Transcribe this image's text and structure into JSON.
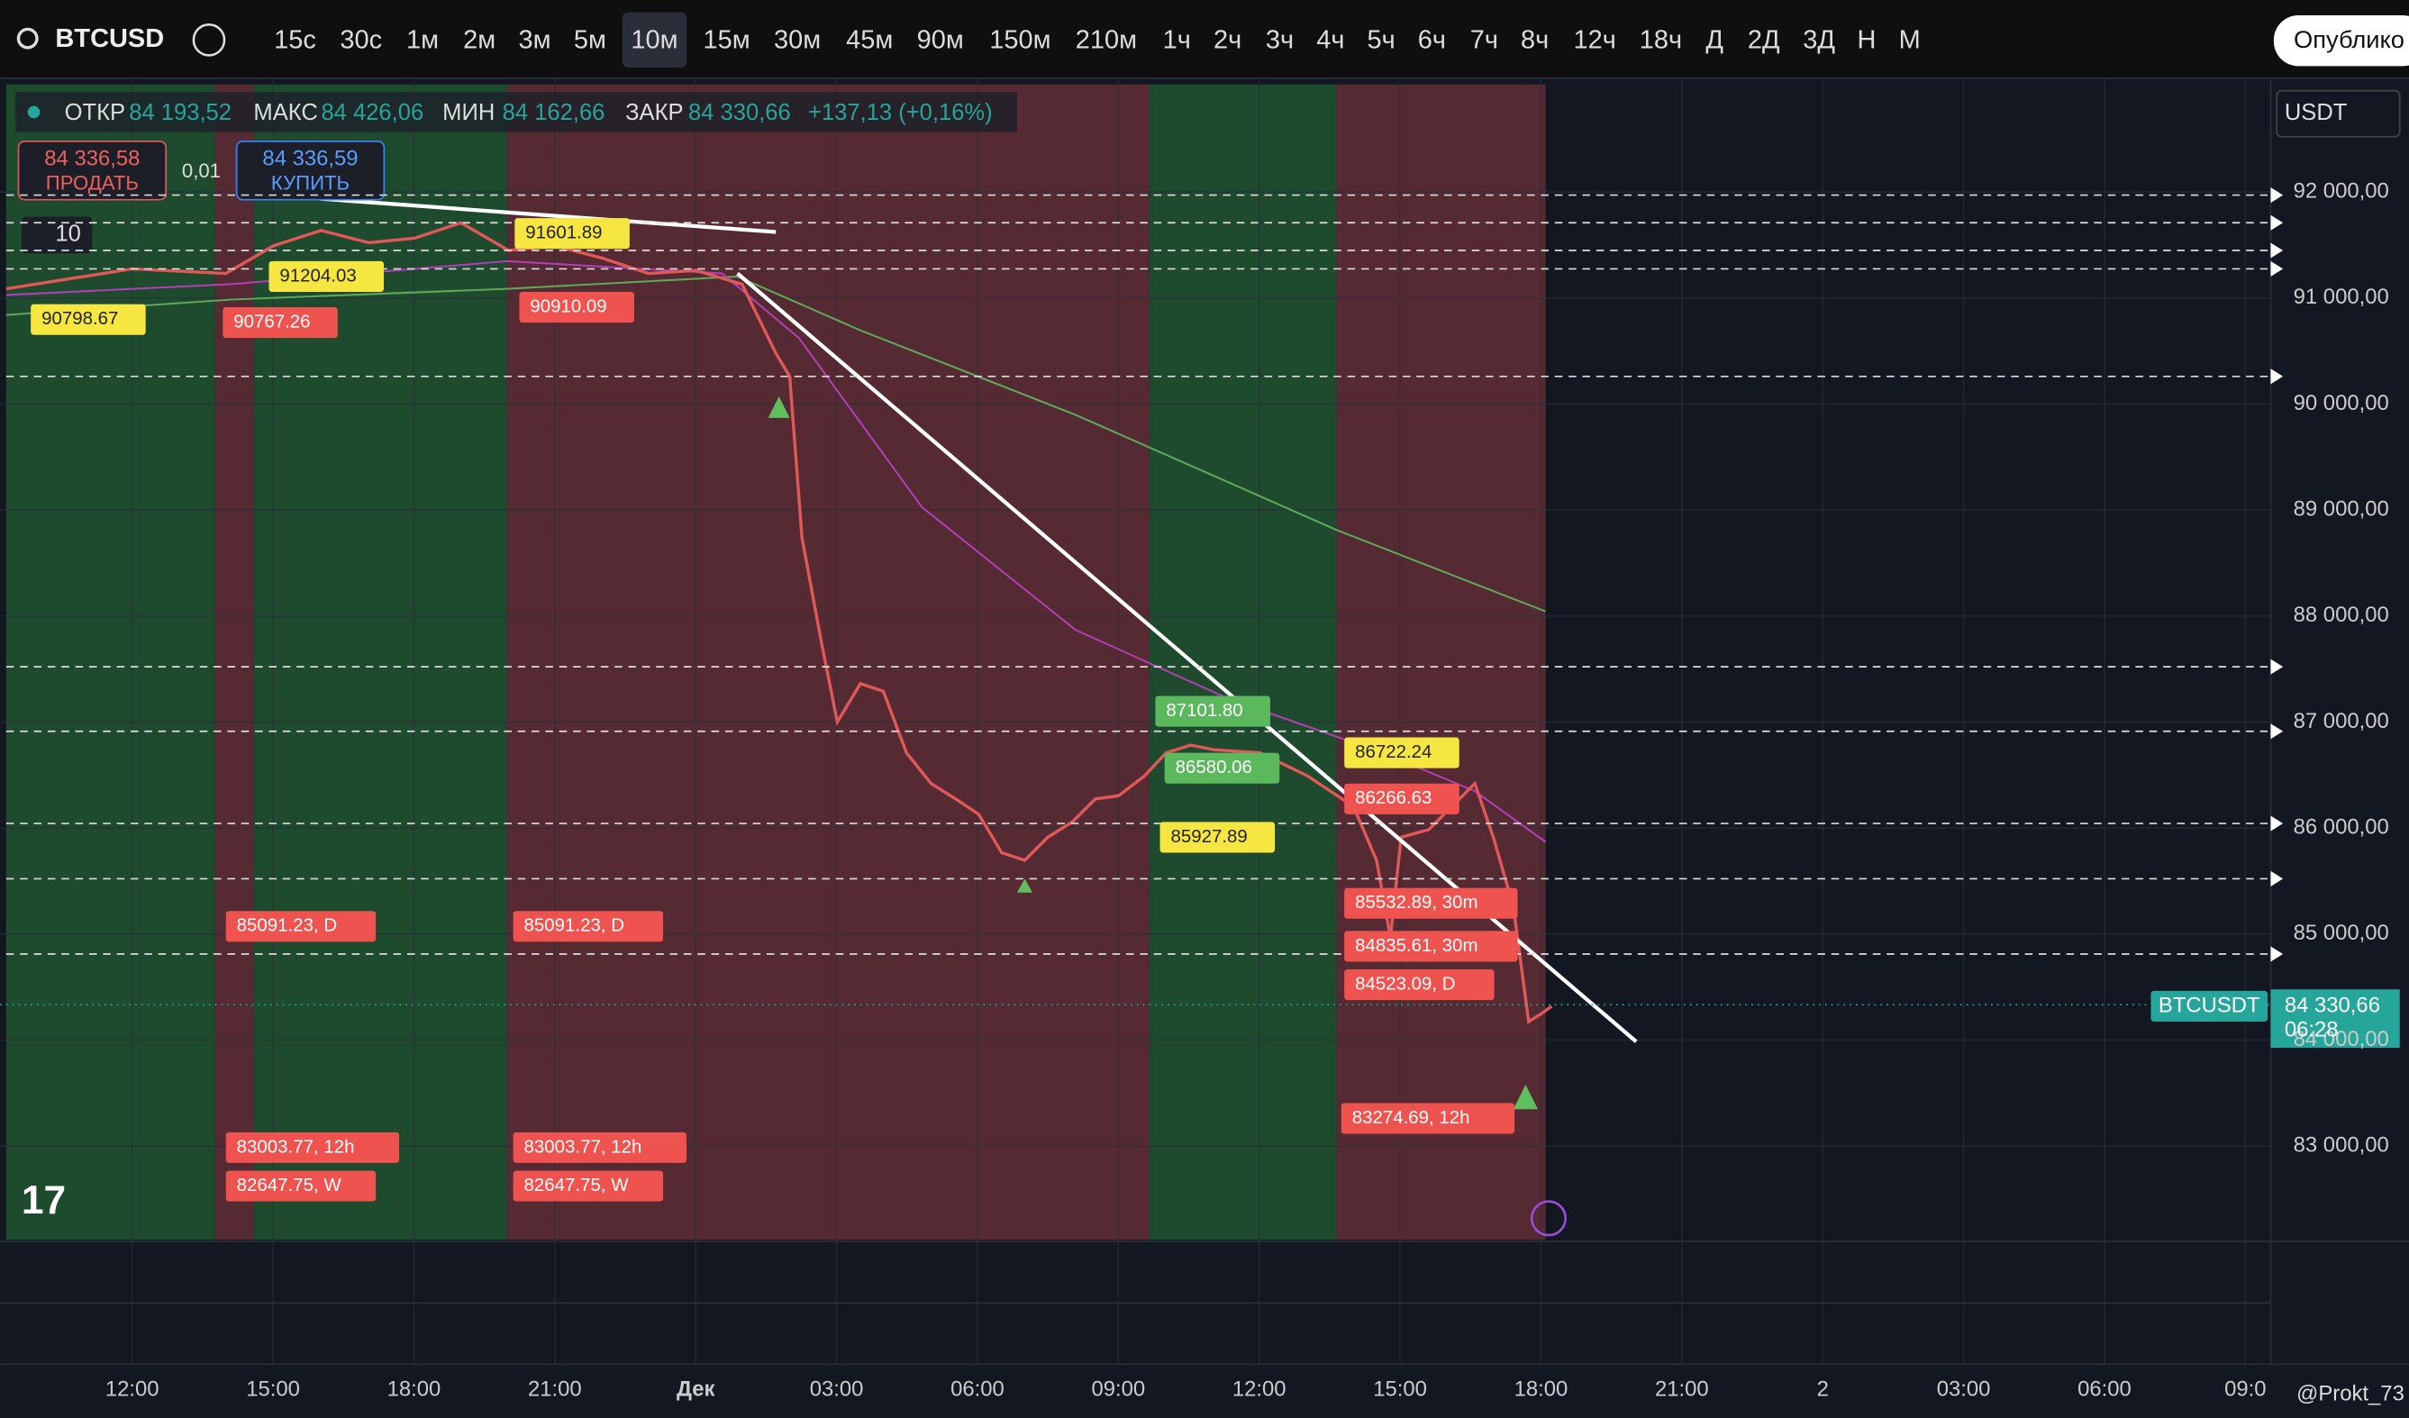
{
  "toolbar": {
    "symbol": "BTCUSD",
    "intervals": [
      "15с",
      "30с",
      "1м",
      "2м",
      "3м",
      "5м",
      "10м",
      "15м",
      "30м",
      "45м",
      "90м",
      "150м",
      "210м",
      "1ч",
      "2ч",
      "3ч",
      "4ч",
      "5ч",
      "6ч",
      "7ч",
      "8ч",
      "12ч",
      "18ч",
      "Д",
      "2Д",
      "3Д",
      "Н",
      "М"
    ],
    "publish": "Опублико"
  },
  "legend": {
    "open_label": "ОТКР",
    "open": "84 193,52",
    "high_label": "МАКС",
    "high": "84 426,06",
    "low_label": "МИН",
    "low": "84 162,66",
    "close_label": "ЗАКР",
    "close": "84 330,66",
    "change": "+137,13 (+0,16%)"
  },
  "trade": {
    "sell_price": "84 336,58",
    "sell": "ПРОДАТЬ",
    "qty": "0,01",
    "buy_price": "84 336,59",
    "buy": "КУПИТЬ"
  },
  "indicator_count": "10",
  "currency": "USDT",
  "price_axis": {
    "labels": [
      "92 000,00",
      "91 000,00",
      "90 000,00",
      "89 000,00",
      "88 000,00",
      "87 000,00",
      "86 000,00",
      "85 000,00",
      "84 000,00",
      "83 000,00"
    ]
  },
  "time_axis": {
    "labels": [
      "12:00",
      "15:00",
      "18:00",
      "21:00",
      "Дек",
      "03:00",
      "06:00",
      "09:00",
      "12:00",
      "15:00",
      "18:00",
      "21:00",
      "2",
      "03:00",
      "06:00",
      "09:0"
    ]
  },
  "level_labels": [
    {
      "text": "91601.89",
      "style": "yellow"
    },
    {
      "text": "91204.03",
      "style": "yellow"
    },
    {
      "text": "90910.09",
      "style": "red"
    },
    {
      "text": "90767.26",
      "style": "red"
    },
    {
      "text": "90798.67",
      "style": "yellow"
    },
    {
      "text": "85091.23, D",
      "style": "red"
    },
    {
      "text": "85091.23, D",
      "style": "red"
    },
    {
      "text": "83003.77, 12h",
      "style": "red"
    },
    {
      "text": "83003.77, 12h",
      "style": "red"
    },
    {
      "text": "82647.75, W",
      "style": "red"
    },
    {
      "text": "82647.75, W",
      "style": "red"
    },
    {
      "text": "87101.80",
      "style": "green"
    },
    {
      "text": "86580.06",
      "style": "green"
    },
    {
      "text": "86722.24",
      "style": "yellow"
    },
    {
      "text": "85927.89",
      "style": "yellow"
    },
    {
      "text": "86266.63",
      "style": "red"
    },
    {
      "text": "85532.89, 30m",
      "style": "red"
    },
    {
      "text": "84835.61, 30m",
      "style": "red"
    },
    {
      "text": "84523.09, D",
      "style": "red"
    },
    {
      "text": "83274.69, 12h",
      "style": "red"
    }
  ],
  "last_price": {
    "symbol": "BTCUSDT",
    "price": "84 330,66",
    "countdown": "06:28"
  },
  "watermark": "@Prokt_73"
}
